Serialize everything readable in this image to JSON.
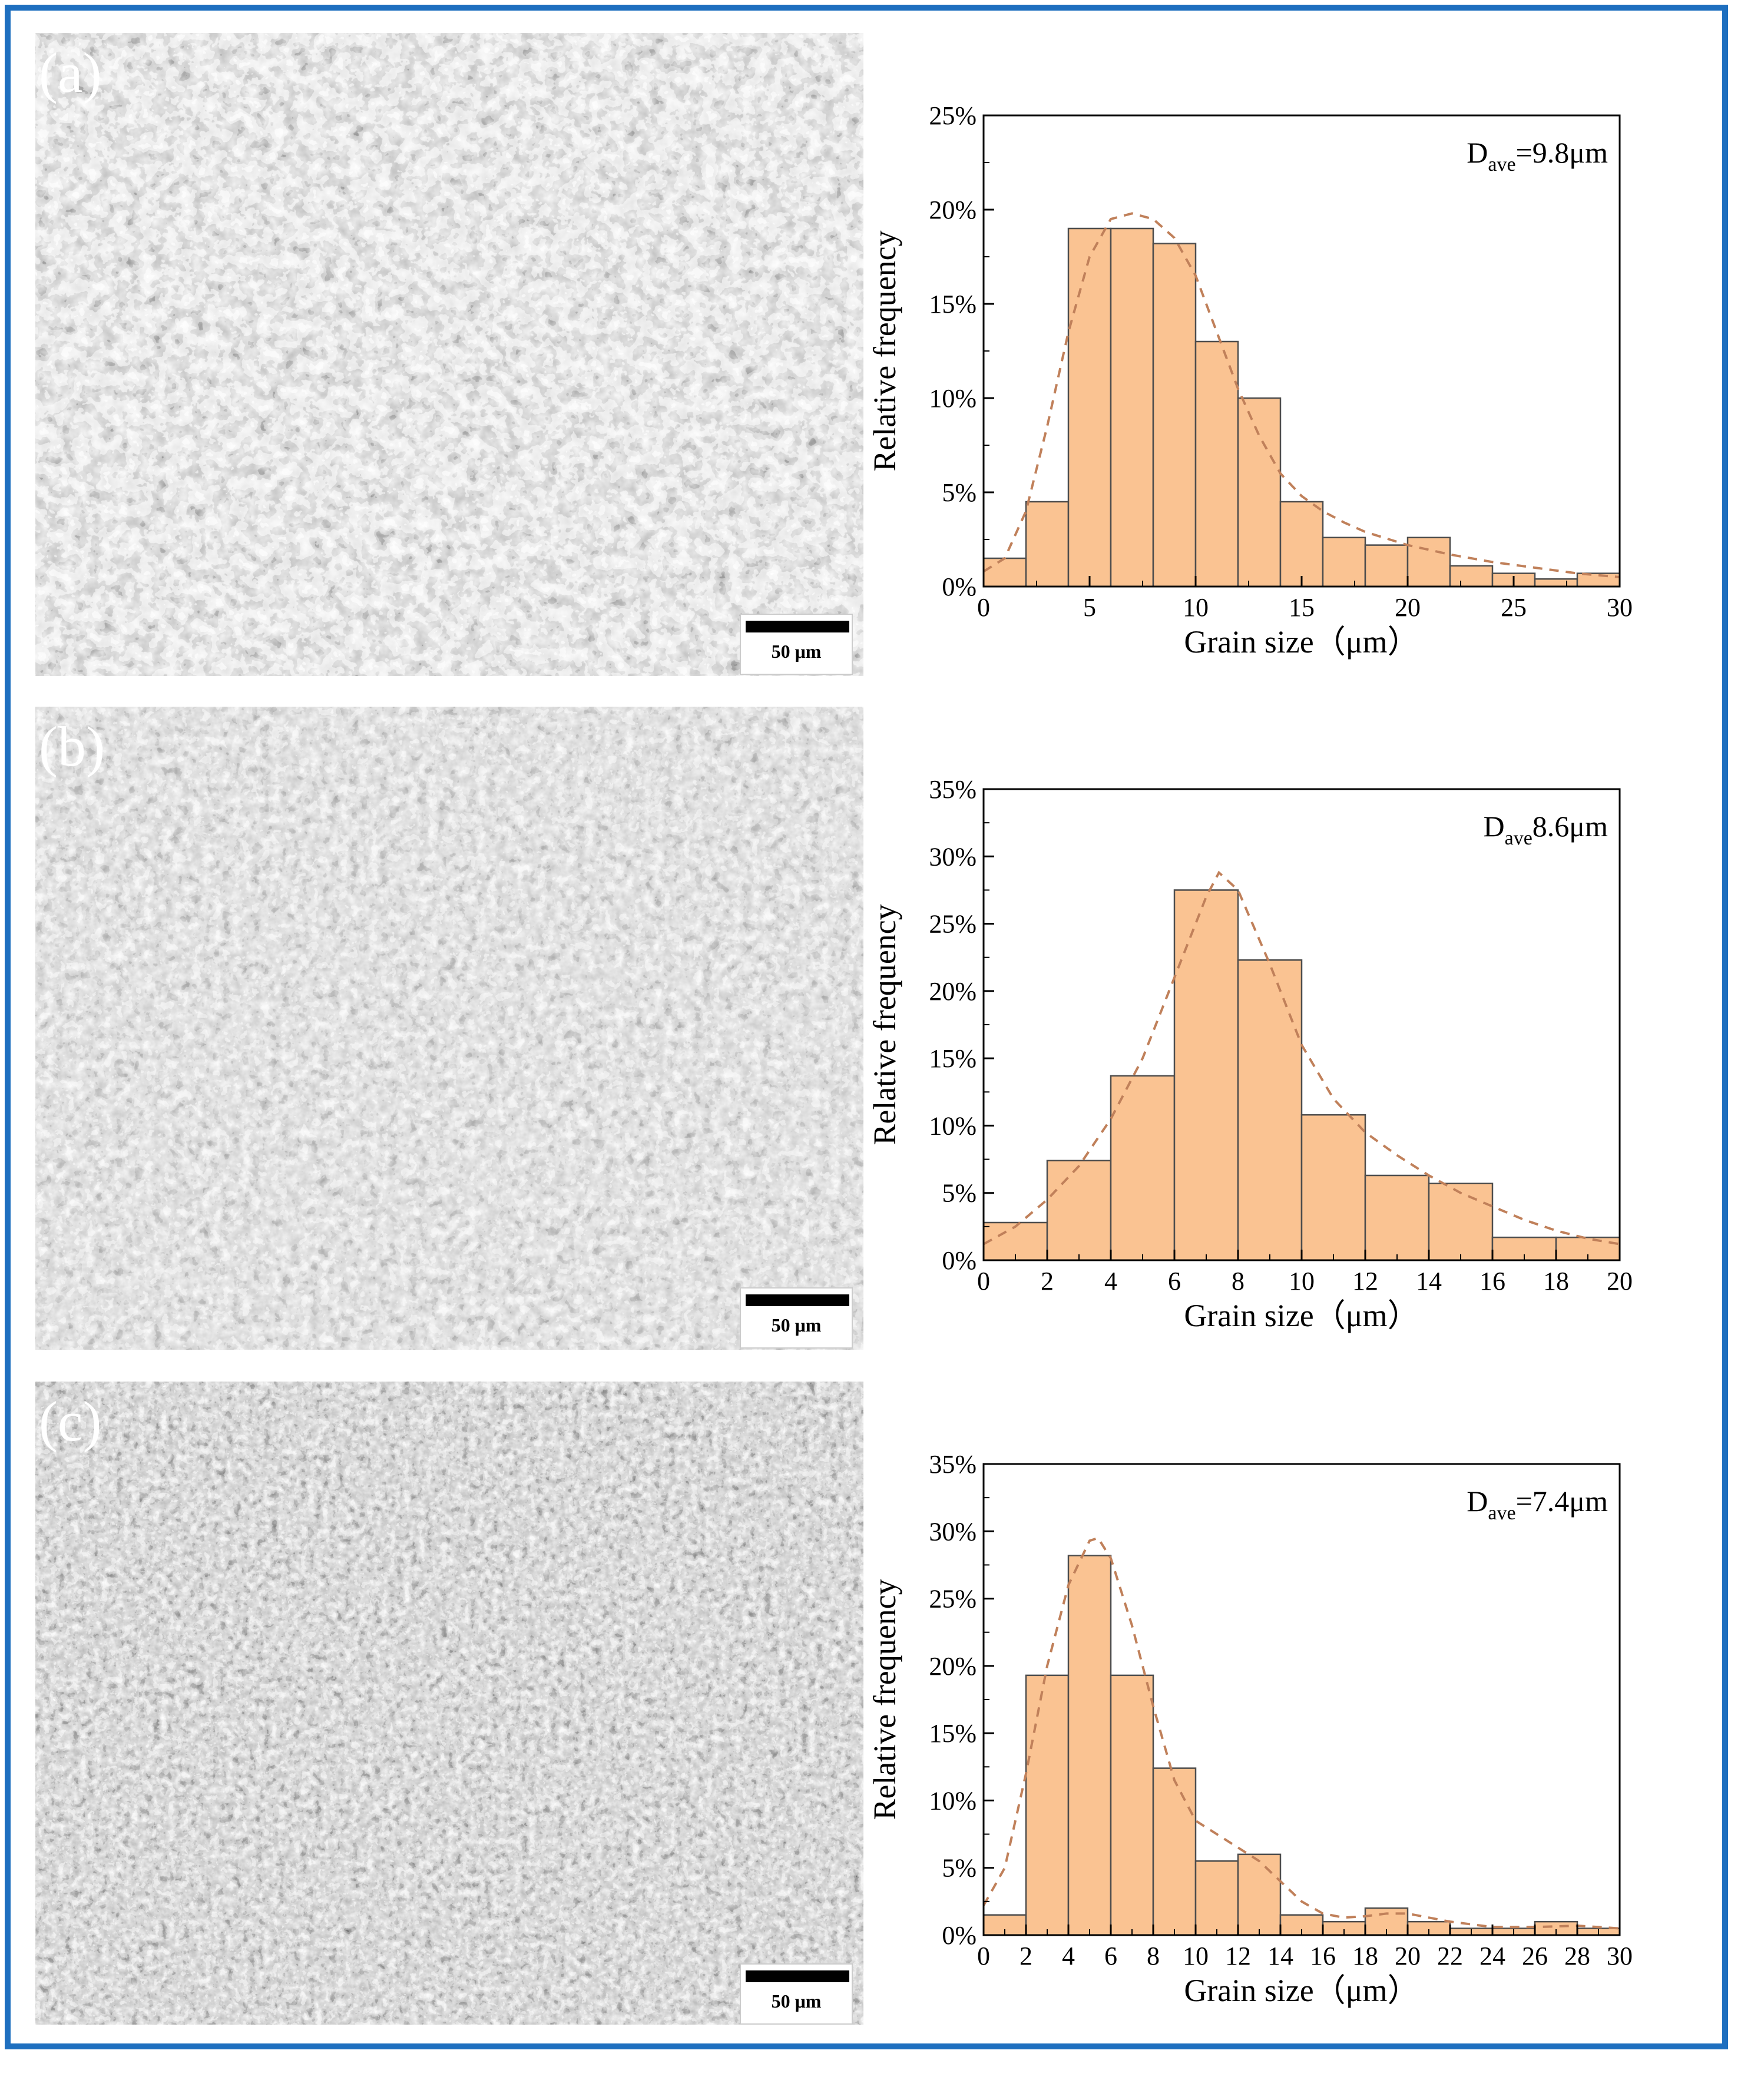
{
  "panels": [
    {
      "label": "(a)",
      "scale_bar": "50 μm"
    },
    {
      "label": "(b)",
      "scale_bar": "50 μm"
    },
    {
      "label": "(c)",
      "scale_bar": "50 μm"
    }
  ],
  "colors": {
    "frame": "#1e6fbf",
    "bar_fill": "#fac392",
    "bar_edge": "#4d4d4d",
    "fit_curve": "#c0805a"
  },
  "chart_data": [
    {
      "type": "bar",
      "xlabel": "Grain size（μm）",
      "ylabel": "Relative frequency",
      "annotation": {
        "main": "D",
        "sub": "ave",
        "rest": "=9.8μm"
      },
      "xlim": [
        0,
        30
      ],
      "ylim": [
        0,
        25
      ],
      "xticks": [
        0,
        5,
        10,
        15,
        20,
        25,
        30
      ],
      "yticks": [
        0,
        5,
        10,
        15,
        20,
        25
      ],
      "ytick_labels": [
        "0%",
        "5%",
        "10%",
        "15%",
        "20%",
        "25%"
      ],
      "bin_width": 2,
      "bins": [
        0,
        2,
        4,
        6,
        8,
        10,
        12,
        14,
        16,
        18,
        20,
        22,
        24,
        26,
        28
      ],
      "values": [
        1.5,
        4.5,
        19.0,
        19.0,
        18.2,
        13.0,
        10.0,
        4.5,
        2.6,
        2.2,
        2.6,
        1.1,
        0.7,
        0.4,
        0.7
      ],
      "fit": {
        "type": "lognormal",
        "peak_x": 7.0,
        "peak_y": 19.8
      },
      "fit_points": [
        [
          0,
          0.8
        ],
        [
          1,
          1.5
        ],
        [
          2,
          4
        ],
        [
          3,
          8.5
        ],
        [
          4,
          13.5
        ],
        [
          5,
          17.5
        ],
        [
          6,
          19.5
        ],
        [
          7,
          19.8
        ],
        [
          8,
          19.5
        ],
        [
          9,
          18.5
        ],
        [
          10,
          16.5
        ],
        [
          11,
          13.5
        ],
        [
          12,
          10.5
        ],
        [
          13,
          8
        ],
        [
          14,
          6
        ],
        [
          15,
          4.8
        ],
        [
          16,
          4
        ],
        [
          17,
          3.4
        ],
        [
          18,
          2.9
        ],
        [
          20,
          2.2
        ],
        [
          22,
          1.7
        ],
        [
          24,
          1.3
        ],
        [
          26,
          1.0
        ],
        [
          28,
          0.7
        ],
        [
          30,
          0.5
        ]
      ]
    },
    {
      "type": "bar",
      "xlabel": "Grain size（μm）",
      "ylabel": "Relative frequency",
      "annotation": {
        "main": "D",
        "sub": "ave",
        "rest": "8.6μm"
      },
      "xlim": [
        0,
        20
      ],
      "ylim": [
        0,
        35
      ],
      "xticks": [
        0,
        2,
        4,
        6,
        8,
        10,
        12,
        14,
        16,
        18,
        20
      ],
      "yticks": [
        0,
        5,
        10,
        15,
        20,
        25,
        30,
        35
      ],
      "ytick_labels": [
        "0%",
        "5%",
        "10%",
        "15%",
        "20%",
        "25%",
        "30%",
        "35%"
      ],
      "bin_width": 2,
      "bins": [
        0,
        2,
        4,
        6,
        8,
        10,
        12,
        14,
        16,
        18
      ],
      "values": [
        2.8,
        7.4,
        13.7,
        27.5,
        22.3,
        10.8,
        6.3,
        5.7,
        1.7,
        1.7
      ],
      "fit": {
        "type": "lognormal",
        "peak_x": 7.4,
        "peak_y": 28.8
      },
      "fit_points": [
        [
          0,
          1.2
        ],
        [
          1,
          2.5
        ],
        [
          2,
          4.5
        ],
        [
          3,
          7
        ],
        [
          4,
          10.5
        ],
        [
          5,
          15
        ],
        [
          6,
          21
        ],
        [
          7,
          27
        ],
        [
          7.4,
          28.8
        ],
        [
          8,
          27.5
        ],
        [
          9,
          22
        ],
        [
          10,
          16
        ],
        [
          11,
          12
        ],
        [
          12,
          9.5
        ],
        [
          13,
          7.8
        ],
        [
          14,
          6.3
        ],
        [
          15,
          5
        ],
        [
          16,
          4
        ],
        [
          17,
          3
        ],
        [
          18,
          2.2
        ],
        [
          19,
          1.6
        ],
        [
          20,
          1.2
        ]
      ]
    },
    {
      "type": "bar",
      "xlabel": "Grain size（μm）",
      "ylabel": "Relative frequency",
      "annotation": {
        "main": "D",
        "sub": "ave",
        "rest": "=7.4μm"
      },
      "xlim": [
        0,
        30
      ],
      "ylim": [
        0,
        35
      ],
      "xticks": [
        0,
        2,
        4,
        6,
        8,
        10,
        12,
        14,
        16,
        18,
        20,
        22,
        24,
        26,
        28,
        30
      ],
      "yticks": [
        0,
        5,
        10,
        15,
        20,
        25,
        30,
        35
      ],
      "ytick_labels": [
        "0%",
        "5%",
        "10%",
        "15%",
        "20%",
        "25%",
        "30%",
        "35%"
      ],
      "bin_width": 2,
      "bins": [
        0,
        2,
        4,
        6,
        8,
        10,
        12,
        14,
        16,
        18,
        20,
        22,
        24,
        26,
        28
      ],
      "values": [
        1.5,
        19.3,
        28.2,
        19.3,
        12.4,
        5.5,
        6.0,
        1.5,
        1.0,
        2.0,
        1.0,
        0.5,
        0.5,
        1.0,
        0.5
      ],
      "fit": {
        "type": "lognormal",
        "peak_x": 5.4,
        "peak_y": 29.5
      },
      "fit_points": [
        [
          0,
          2.2
        ],
        [
          1,
          5
        ],
        [
          2,
          12
        ],
        [
          3,
          20
        ],
        [
          4,
          26
        ],
        [
          5,
          29.3
        ],
        [
          5.4,
          29.5
        ],
        [
          6,
          28
        ],
        [
          7,
          23
        ],
        [
          8,
          17
        ],
        [
          9,
          11.5
        ],
        [
          10,
          8.5
        ],
        [
          11,
          7.5
        ],
        [
          12,
          6.5
        ],
        [
          13,
          5.5
        ],
        [
          14,
          4
        ],
        [
          15,
          2.5
        ],
        [
          16,
          1.6
        ],
        [
          17,
          1.3
        ],
        [
          18,
          1.4
        ],
        [
          19,
          1.6
        ],
        [
          20,
          1.6
        ],
        [
          22,
          1.0
        ],
        [
          24,
          0.6
        ],
        [
          26,
          0.6
        ],
        [
          28,
          0.7
        ],
        [
          30,
          0.5
        ]
      ]
    }
  ]
}
